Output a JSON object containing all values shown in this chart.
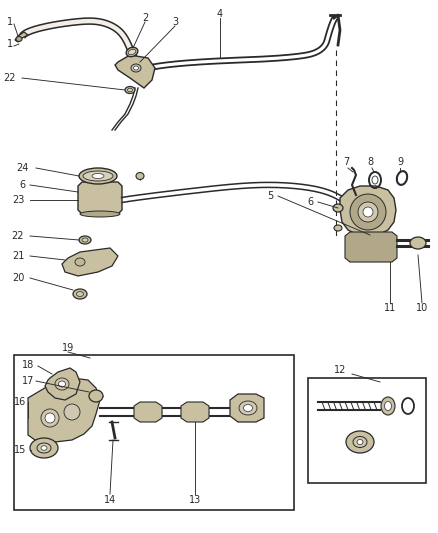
{
  "bg_color": "#ffffff",
  "line_color": "#2a2a2a",
  "fig_width": 4.38,
  "fig_height": 5.33,
  "dpi": 100,
  "label_fs": 7.0,
  "part_color": "#c8c0a0",
  "part_color2": "#b0a888",
  "part_dark": "#888070"
}
